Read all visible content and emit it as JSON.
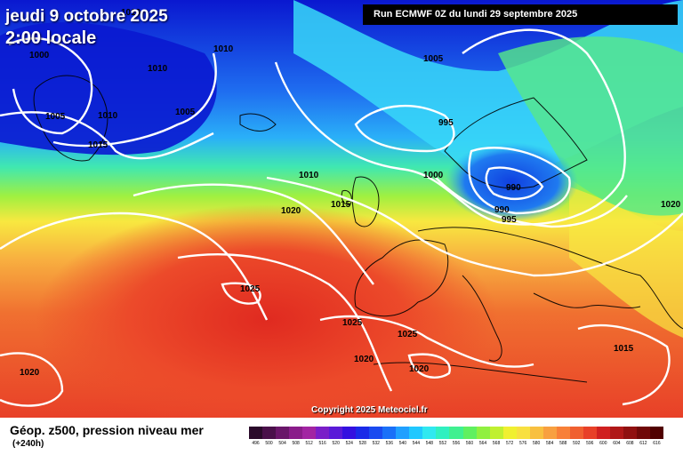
{
  "header": {
    "date": "jeudi 9 octobre 2025",
    "time": "2:00 locale",
    "run": "Run ECMWF 0Z du lundi 29 septembre 2025"
  },
  "copyright": "Copyright 2025 Meteociel.fr",
  "isobar_labels": [
    "1010",
    "1000",
    "1010",
    "1010",
    "1005",
    "1010",
    "1005",
    "1015",
    "1005",
    "995",
    "1000",
    "990",
    "990",
    "995",
    "1010",
    "1015",
    "1020",
    "1020",
    "1025",
    "1025",
    "1025",
    "1020",
    "1020",
    "1020",
    "1015"
  ],
  "legend": {
    "title": "Géop. z500, pression niveau mer",
    "subtitle": "(+240h)",
    "scale_labels": [
      "496",
      "500",
      "504",
      "508",
      "512",
      "516",
      "520",
      "524",
      "528",
      "532",
      "536",
      "540",
      "544",
      "548",
      "552",
      "556",
      "560",
      "564",
      "568",
      "572",
      "576",
      "580",
      "584",
      "588",
      "592",
      "596",
      "600",
      "604",
      "608",
      "612",
      "616"
    ],
    "scale_colors": [
      "#2a0a2a",
      "#4a104a",
      "#6a166a",
      "#8a1c8a",
      "#a224a2",
      "#7a1ec8",
      "#5a1ad8",
      "#3410e0",
      "#1a2ae8",
      "#1a4af0",
      "#1a70f8",
      "#20a0ff",
      "#20c8ff",
      "#30e8f0",
      "#30f0c0",
      "#40f090",
      "#60f060",
      "#90f040",
      "#c0f030",
      "#f0f030",
      "#f8e040",
      "#f8c040",
      "#f8a040",
      "#f88038",
      "#f06030",
      "#e84028",
      "#d02020",
      "#b01818",
      "#901010",
      "#700808",
      "#500000"
    ]
  },
  "colors": {
    "deep_blue": "#0a18d0",
    "blue": "#1f6ef0",
    "cyan": "#38d8f8",
    "green": "#58e888",
    "yellow": "#f8e840",
    "orange": "#f89838",
    "red": "#e83c28"
  }
}
